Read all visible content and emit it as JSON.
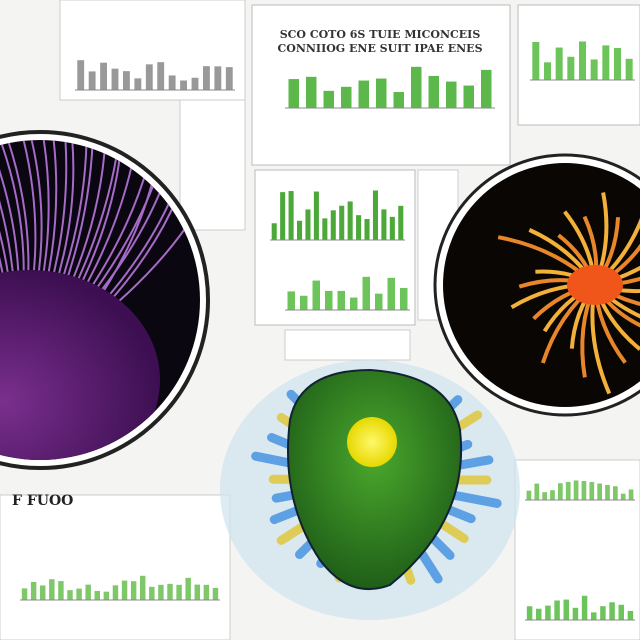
{
  "collage": {
    "panel_title_line1": "SCO COTO 6S TUIE MICONCEIS",
    "panel_title_line2": "CONNIIOG ENE SUIT IPAE ENES",
    "corner_caption": "F FUOO"
  }
}
